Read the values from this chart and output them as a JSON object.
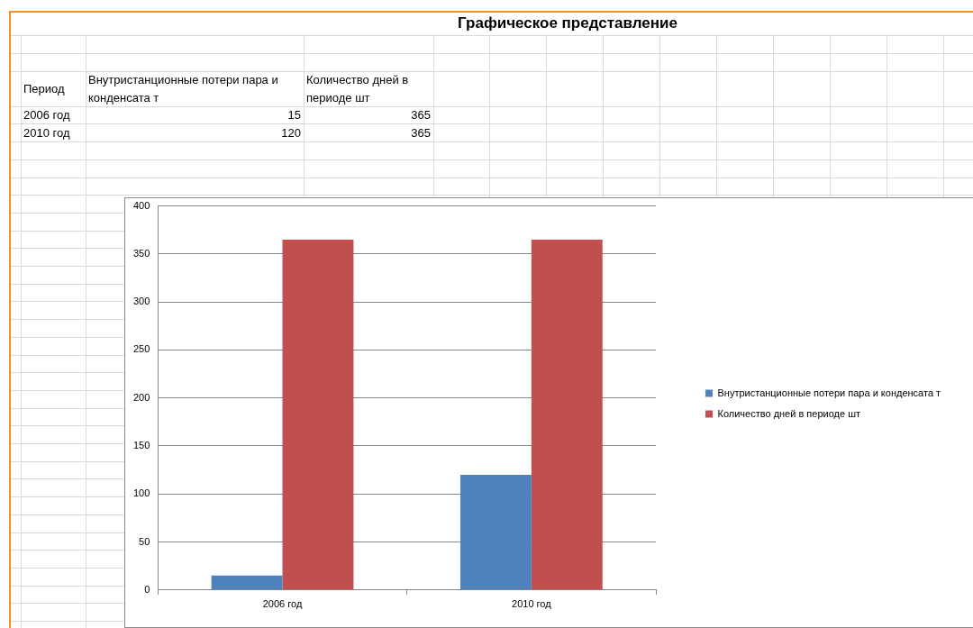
{
  "chart_data": {
    "type": "bar",
    "title": "Графическое представление",
    "annotations": [
      "Период",
      "15",
      "365",
      "120",
      "365"
    ],
    "categories": [
      "2006 год",
      "2010 год"
    ],
    "series": [
      {
        "name": "Внутристанционные потери пара и конденсата т",
        "color": "#4f81bd",
        "values": [
          15,
          120
        ]
      },
      {
        "name": "Количество дней в периоде шт",
        "color": "#c0504d",
        "values": [
          365,
          365
        ]
      }
    ],
    "ylim": [
      0,
      400
    ],
    "yticks": [
      0,
      50,
      100,
      150,
      200,
      250,
      300,
      350,
      400
    ],
    "grid": "y",
    "legend": "right"
  }
}
